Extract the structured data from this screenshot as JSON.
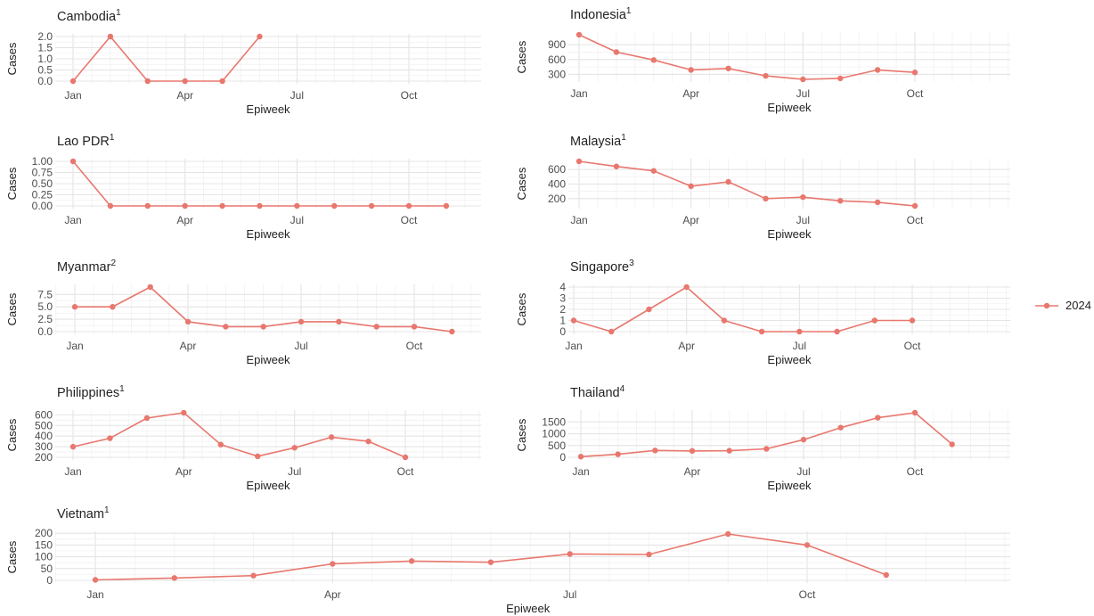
{
  "legend": {
    "label": "2024",
    "color": "#E8776E"
  },
  "x_ticks": [
    "Jan",
    "Apr",
    "Jul",
    "Oct"
  ],
  "style": {
    "line_color": "#E8776E",
    "grid_major": "#e4e4e4",
    "grid_minor": "#f1f1f1",
    "text_color": "#222222",
    "tick_color": "#4d4d4d"
  },
  "chart_data": [
    {
      "type": "line",
      "title": "Cambodia",
      "title_sup": "1",
      "xlabel": "Epiweek",
      "ylabel": "Cases",
      "x": [
        "Jan",
        "Feb",
        "Mar",
        "Apr",
        "May",
        "Jun"
      ],
      "values": [
        0,
        2,
        0,
        0,
        0,
        2
      ],
      "yticks": [
        "0.0",
        "0.5",
        "1.0",
        "1.5",
        "2.0"
      ],
      "ylim": [
        0,
        2
      ],
      "grid": true
    },
    {
      "type": "line",
      "title": "Indonesia",
      "title_sup": "1",
      "xlabel": "Epiweek",
      "ylabel": "Cases",
      "x": [
        "Jan",
        "Feb",
        "Mar",
        "Apr",
        "May",
        "Jun",
        "Jul",
        "Aug",
        "Sep",
        "Oct"
      ],
      "values": [
        1100,
        750,
        590,
        390,
        420,
        270,
        200,
        220,
        390,
        340
      ],
      "yticks": [
        "300",
        "600",
        "900"
      ],
      "ylim": [
        200,
        1100
      ],
      "grid": true
    },
    {
      "type": "line",
      "title": "Lao PDR",
      "title_sup": "1",
      "xlabel": "Epiweek",
      "ylabel": "Cases",
      "x": [
        "Jan",
        "Feb",
        "Mar",
        "Apr",
        "May",
        "Jun",
        "Jul",
        "Aug",
        "Sep",
        "Oct",
        "Nov"
      ],
      "values": [
        1,
        0,
        0,
        0,
        0,
        0,
        0,
        0,
        0,
        0,
        0
      ],
      "yticks": [
        "0.00",
        "0.25",
        "0.50",
        "0.75",
        "1.00"
      ],
      "ylim": [
        0,
        1
      ],
      "grid": true
    },
    {
      "type": "line",
      "title": "Malaysia",
      "title_sup": "1",
      "xlabel": "Epiweek",
      "ylabel": "Cases",
      "x": [
        "Jan",
        "Feb",
        "Mar",
        "Apr",
        "May",
        "Jun",
        "Jul",
        "Aug",
        "Sep",
        "Oct"
      ],
      "values": [
        710,
        640,
        580,
        370,
        430,
        200,
        220,
        170,
        150,
        100
      ],
      "yticks": [
        "200",
        "400",
        "600"
      ],
      "ylim": [
        100,
        710
      ],
      "grid": true
    },
    {
      "type": "line",
      "title": "Myanmar",
      "title_sup": "2",
      "xlabel": "Epiweek",
      "ylabel": "Cases",
      "x": [
        "Jan",
        "Feb",
        "Mar",
        "Apr",
        "May",
        "Jun",
        "Jul",
        "Aug",
        "Sep",
        "Oct",
        "Nov"
      ],
      "values": [
        5,
        5,
        9,
        2,
        1,
        1,
        2,
        2,
        1,
        1,
        0
      ],
      "yticks": [
        "0.0",
        "2.5",
        "5.0",
        "7.5"
      ],
      "ylim": [
        0,
        9
      ],
      "grid": true
    },
    {
      "type": "line",
      "title": "Singapore",
      "title_sup": "3",
      "xlabel": "Epiweek",
      "ylabel": "Cases",
      "x": [
        "Jan",
        "Feb",
        "Mar",
        "Apr",
        "May",
        "Jun",
        "Jul",
        "Aug",
        "Sep",
        "Oct"
      ],
      "values": [
        1,
        0,
        2,
        4,
        1,
        0,
        0,
        0,
        1,
        1
      ],
      "yticks": [
        "0",
        "1",
        "2",
        "3",
        "4"
      ],
      "ylim": [
        0,
        4
      ],
      "grid": true
    },
    {
      "type": "line",
      "title": "Philippines",
      "title_sup": "1",
      "xlabel": "Epiweek",
      "ylabel": "Cases",
      "x": [
        "Jan",
        "Feb",
        "Mar",
        "Apr",
        "May",
        "Jun",
        "Jul",
        "Aug",
        "Sep",
        "Oct"
      ],
      "values": [
        300,
        380,
        570,
        620,
        320,
        210,
        290,
        390,
        350,
        200
      ],
      "yticks": [
        "200",
        "300",
        "400",
        "500",
        "600"
      ],
      "ylim": [
        200,
        620
      ],
      "grid": true
    },
    {
      "type": "line",
      "title": "Thailand",
      "title_sup": "4",
      "xlabel": "Epiweek",
      "ylabel": "Cases",
      "x": [
        "Jan",
        "Feb",
        "Mar",
        "Apr",
        "May",
        "Jun",
        "Jul",
        "Aug",
        "Sep",
        "Oct",
        "Nov"
      ],
      "values": [
        30,
        130,
        290,
        270,
        280,
        360,
        750,
        1260,
        1680,
        1890,
        550
      ],
      "yticks": [
        "0",
        "500",
        "1000",
        "1500"
      ],
      "ylim": [
        0,
        1890
      ],
      "grid": true
    },
    {
      "type": "line",
      "title": "Vietnam",
      "title_sup": "1",
      "xlabel": "Epiweek",
      "ylabel": "Cases",
      "x": [
        "Jan",
        "Feb",
        "Mar",
        "Apr",
        "May",
        "Jun",
        "Jul",
        "Aug",
        "Sep",
        "Oct",
        "Nov"
      ],
      "values": [
        2,
        10,
        20,
        70,
        82,
        77,
        112,
        110,
        197,
        150,
        23
      ],
      "yticks": [
        "0",
        "50",
        "100",
        "150",
        "200"
      ],
      "ylim": [
        0,
        197
      ],
      "grid": true
    }
  ]
}
